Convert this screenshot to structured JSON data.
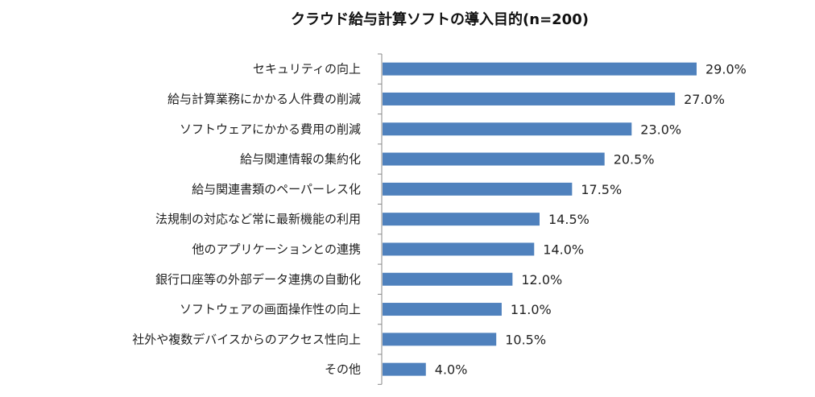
{
  "chart_data": {
    "type": "bar",
    "orientation": "horizontal",
    "title": "クラウド給与計算ソフトの導入目的(n=200)",
    "categories": [
      "セキュリティの向上",
      "給与計算業務にかかる人件費の削減",
      "ソフトウェアにかかる費用の削減",
      "給与関連情報の集約化",
      "給与関連書類のペーパーレス化",
      "法規制の対応など常に最新機能の利用",
      "他のアプリケーションとの連携",
      "銀行口座等の外部データ連携の自動化",
      "ソフトウェアの画面操作性の向上",
      "社外や複数デバイスからのアクセス性向上",
      "その他"
    ],
    "values": [
      29.0,
      27.0,
      23.0,
      20.5,
      17.5,
      14.5,
      14.0,
      12.0,
      11.0,
      10.5,
      4.0
    ],
    "data_labels": [
      "29.0%",
      "27.0%",
      "23.0%",
      "20.5%",
      "17.5%",
      "14.5%",
      "14.0%",
      "12.0%",
      "11.0%",
      "10.5%",
      "4.0%"
    ],
    "unit": "%",
    "xlim": [
      0,
      29
    ],
    "grid": false,
    "legend": "none",
    "bar_color": "#4f81bd"
  }
}
